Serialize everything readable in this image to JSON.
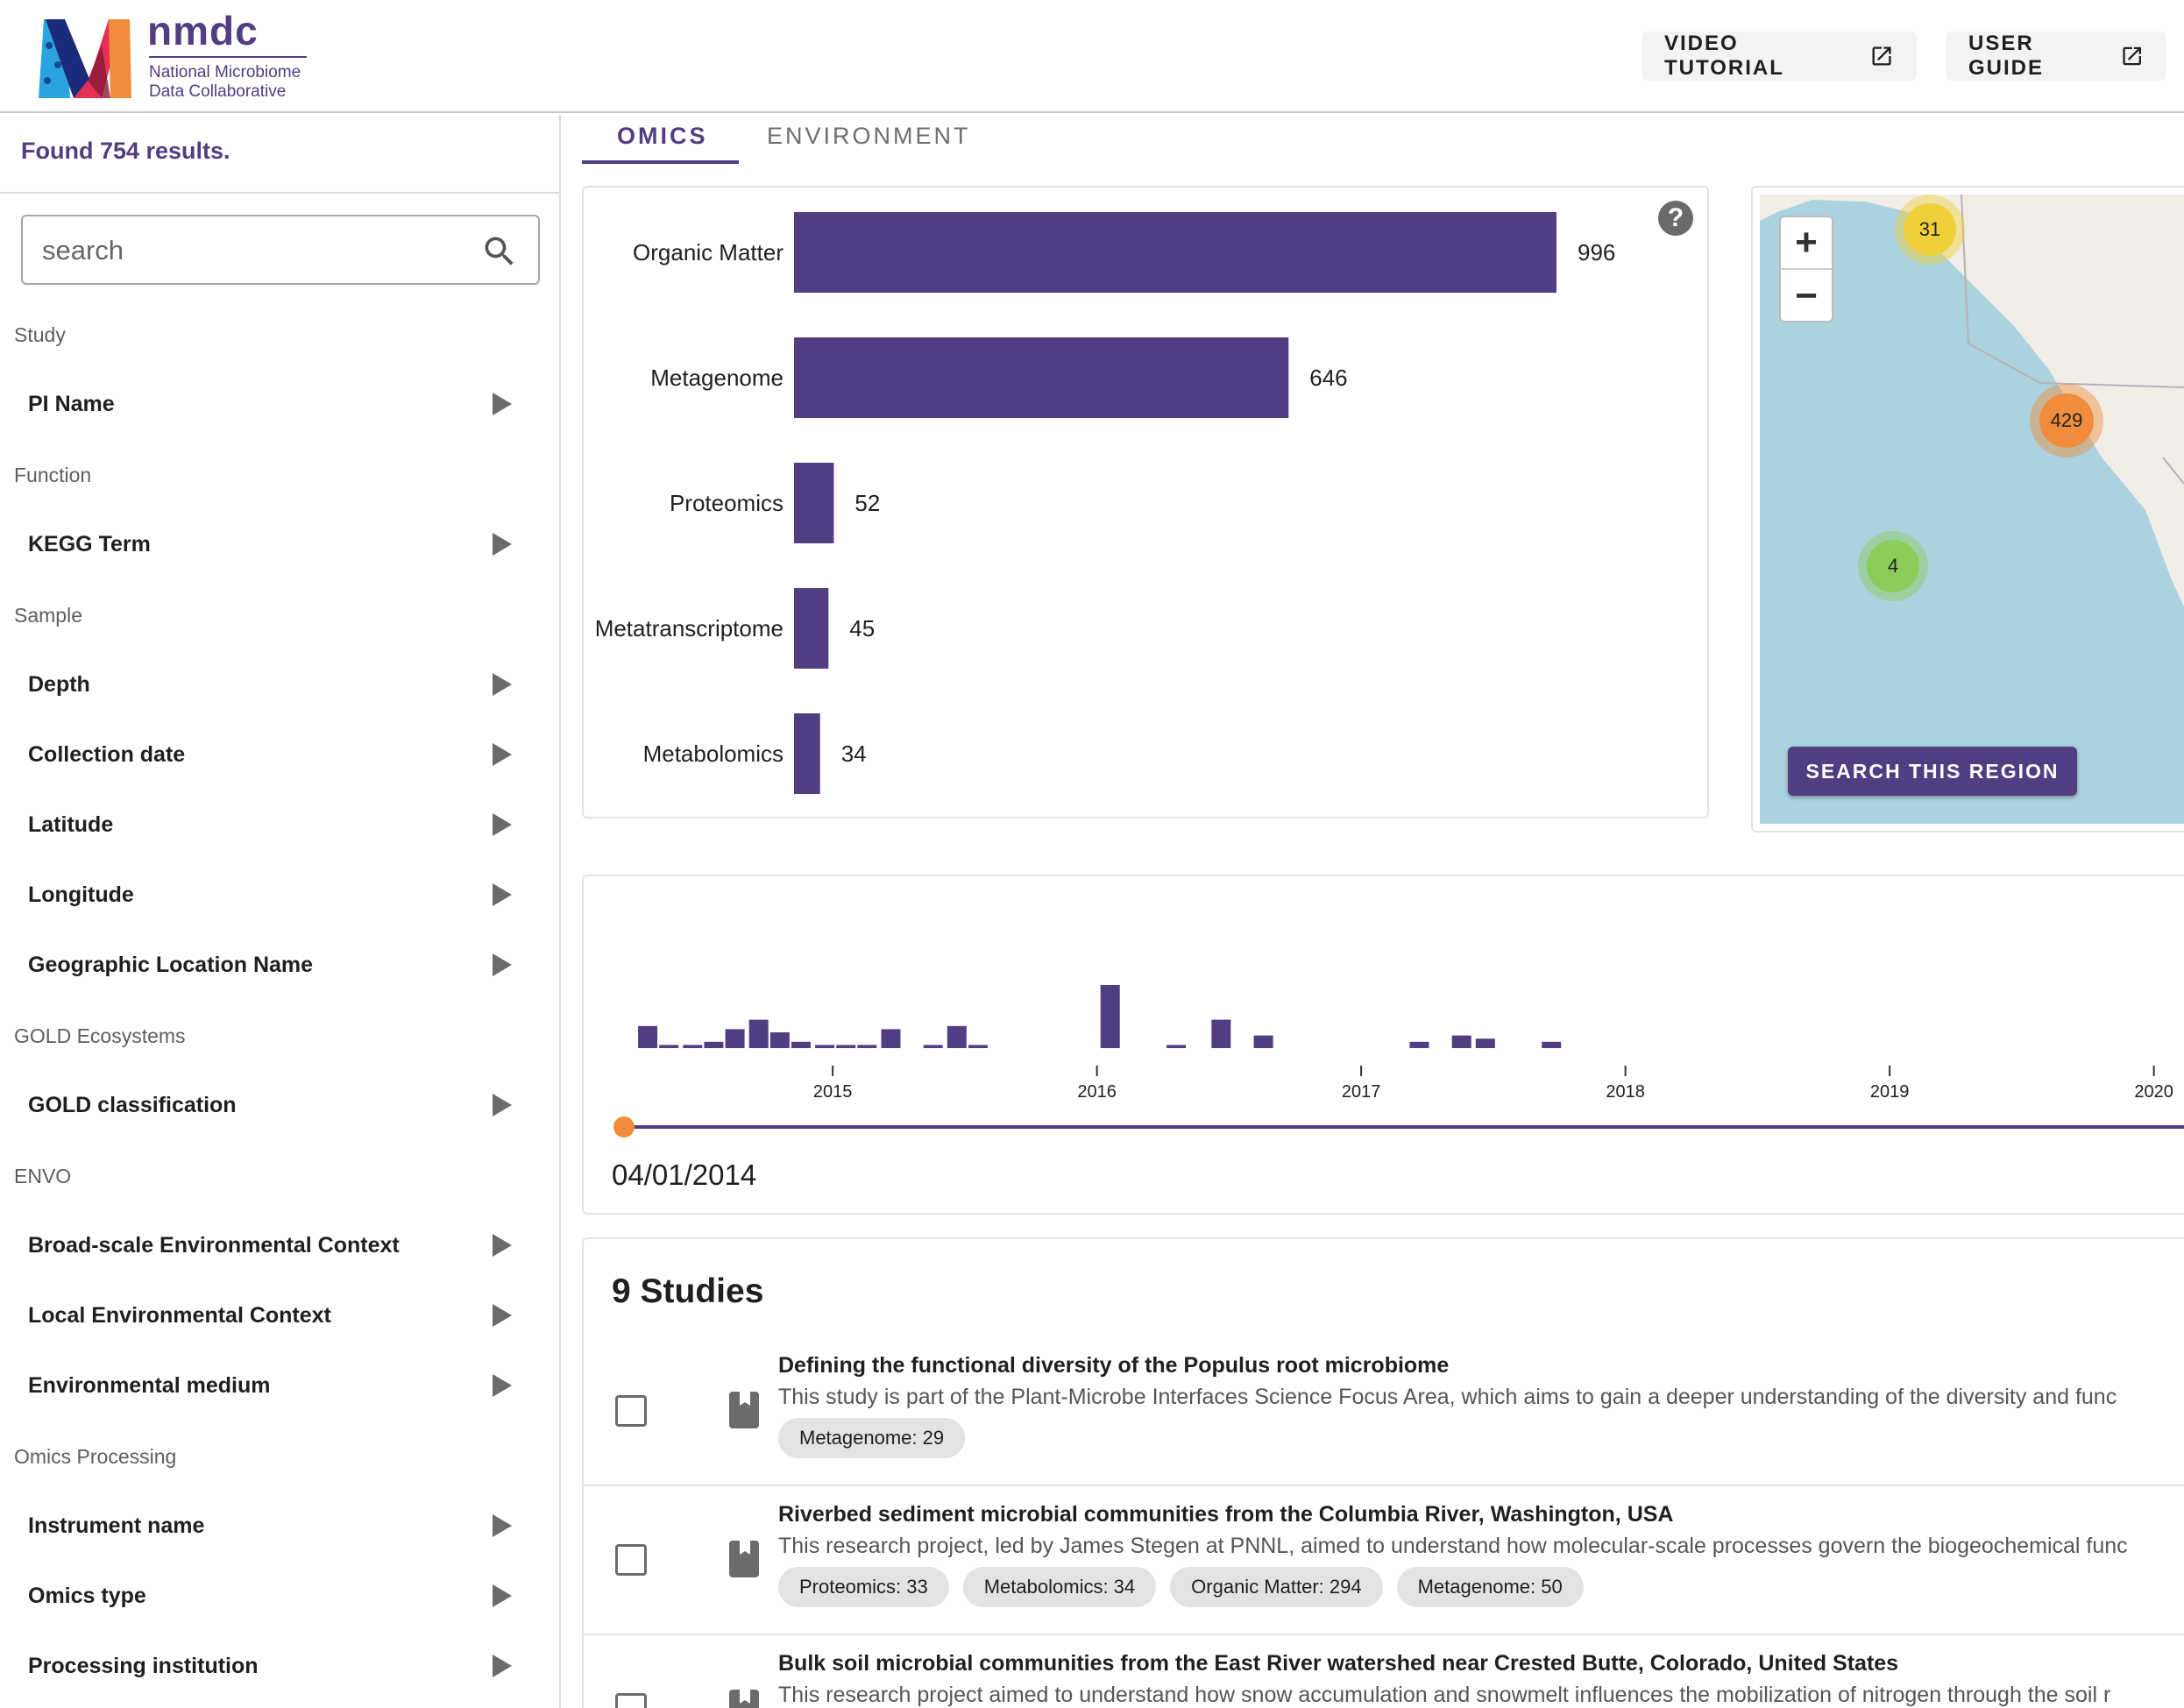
{
  "header": {
    "brand_name": "nmdc",
    "brand_sub_line1": "National Microbiome",
    "brand_sub_line2": "Data Collaborative",
    "video_tutorial": "VIDEO TUTORIAL",
    "user_guide": "USER GUIDE"
  },
  "sidebar": {
    "found_text": "Found 754 results.",
    "search_placeholder": "search",
    "sections": [
      {
        "label": "Study",
        "items": [
          "PI Name"
        ]
      },
      {
        "label": "Function",
        "items": [
          "KEGG Term"
        ]
      },
      {
        "label": "Sample",
        "items": [
          "Depth",
          "Collection date",
          "Latitude",
          "Longitude",
          "Geographic Location Name"
        ]
      },
      {
        "label": "GOLD Ecosystems",
        "items": [
          "GOLD classification"
        ]
      },
      {
        "label": "ENVO",
        "items": [
          "Broad-scale Environmental Context",
          "Local Environmental Context",
          "Environmental medium"
        ]
      },
      {
        "label": "Omics Processing",
        "items": [
          "Instrument name",
          "Omics type",
          "Processing institution"
        ]
      }
    ]
  },
  "tabs": [
    "OMICS",
    "ENVIRONMENT"
  ],
  "help_label": "?",
  "chart_data": [
    {
      "type": "bar",
      "orientation": "horizontal",
      "categories": [
        "Organic Matter",
        "Metagenome",
        "Proteomics",
        "Metatranscriptome",
        "Metabolomics"
      ],
      "values": [
        996,
        646,
        52,
        45,
        34
      ],
      "color": "#523d83"
    },
    {
      "type": "bar",
      "x_ticks": [
        "2015",
        "2016",
        "2017",
        "2018",
        "2019",
        "2020"
      ],
      "x_range": [
        2014.25,
        2020.0
      ],
      "bins": [
        {
          "x": 2014.3,
          "y": 7
        },
        {
          "x": 2014.38,
          "y": 1
        },
        {
          "x": 2014.47,
          "y": 1
        },
        {
          "x": 2014.55,
          "y": 2
        },
        {
          "x": 2014.63,
          "y": 6
        },
        {
          "x": 2014.72,
          "y": 9
        },
        {
          "x": 2014.8,
          "y": 5
        },
        {
          "x": 2014.88,
          "y": 2
        },
        {
          "x": 2014.97,
          "y": 1
        },
        {
          "x": 2015.05,
          "y": 1
        },
        {
          "x": 2015.13,
          "y": 1
        },
        {
          "x": 2015.22,
          "y": 6
        },
        {
          "x": 2015.38,
          "y": 1
        },
        {
          "x": 2015.47,
          "y": 7
        },
        {
          "x": 2015.55,
          "y": 1
        },
        {
          "x": 2016.05,
          "y": 20
        },
        {
          "x": 2016.3,
          "y": 1
        },
        {
          "x": 2016.47,
          "y": 9
        },
        {
          "x": 2016.63,
          "y": 4
        },
        {
          "x": 2017.22,
          "y": 2
        },
        {
          "x": 2017.38,
          "y": 4
        },
        {
          "x": 2017.47,
          "y": 3
        },
        {
          "x": 2017.72,
          "y": 2
        }
      ],
      "color": "#523d83"
    }
  ],
  "map": {
    "zoom_in": "+",
    "zoom_out": "−",
    "clusters": [
      {
        "label": "31",
        "color": "#f0d03a"
      },
      {
        "label": "429",
        "color": "#f08c3c"
      },
      {
        "label": "4",
        "color": "#8ccc5a"
      }
    ],
    "search_region": "SEARCH THIS REGION"
  },
  "timeline": {
    "date": "04/01/2014",
    "slider_value": 0,
    "accent": "#f08c3c"
  },
  "studies": {
    "title": "9 Studies",
    "items": [
      {
        "title": "Defining the functional diversity of the Populus root microbiome",
        "description": "This study is part of the Plant-Microbe Interfaces Science Focus Area, which aims to gain a deeper understanding of the diversity and func",
        "chips": [
          "Metagenome: 29"
        ]
      },
      {
        "title": "Riverbed sediment microbial communities from the Columbia River, Washington, USA",
        "description": "This research project, led by James Stegen at PNNL, aimed to understand how molecular-scale processes govern the biogeochemical func",
        "chips": [
          "Proteomics: 33",
          "Metabolomics: 34",
          "Organic Matter: 294",
          "Metagenome: 50"
        ]
      },
      {
        "title": "Bulk soil microbial communities from the East River watershed near Crested Butte, Colorado, United States",
        "description": "This research project aimed to understand how snow accumulation and snowmelt influences the mobilization of nitrogen through the soil r",
        "chips": []
      }
    ]
  },
  "colors": {
    "brand": "#523d83",
    "accent_orange": "#f08c3c"
  }
}
